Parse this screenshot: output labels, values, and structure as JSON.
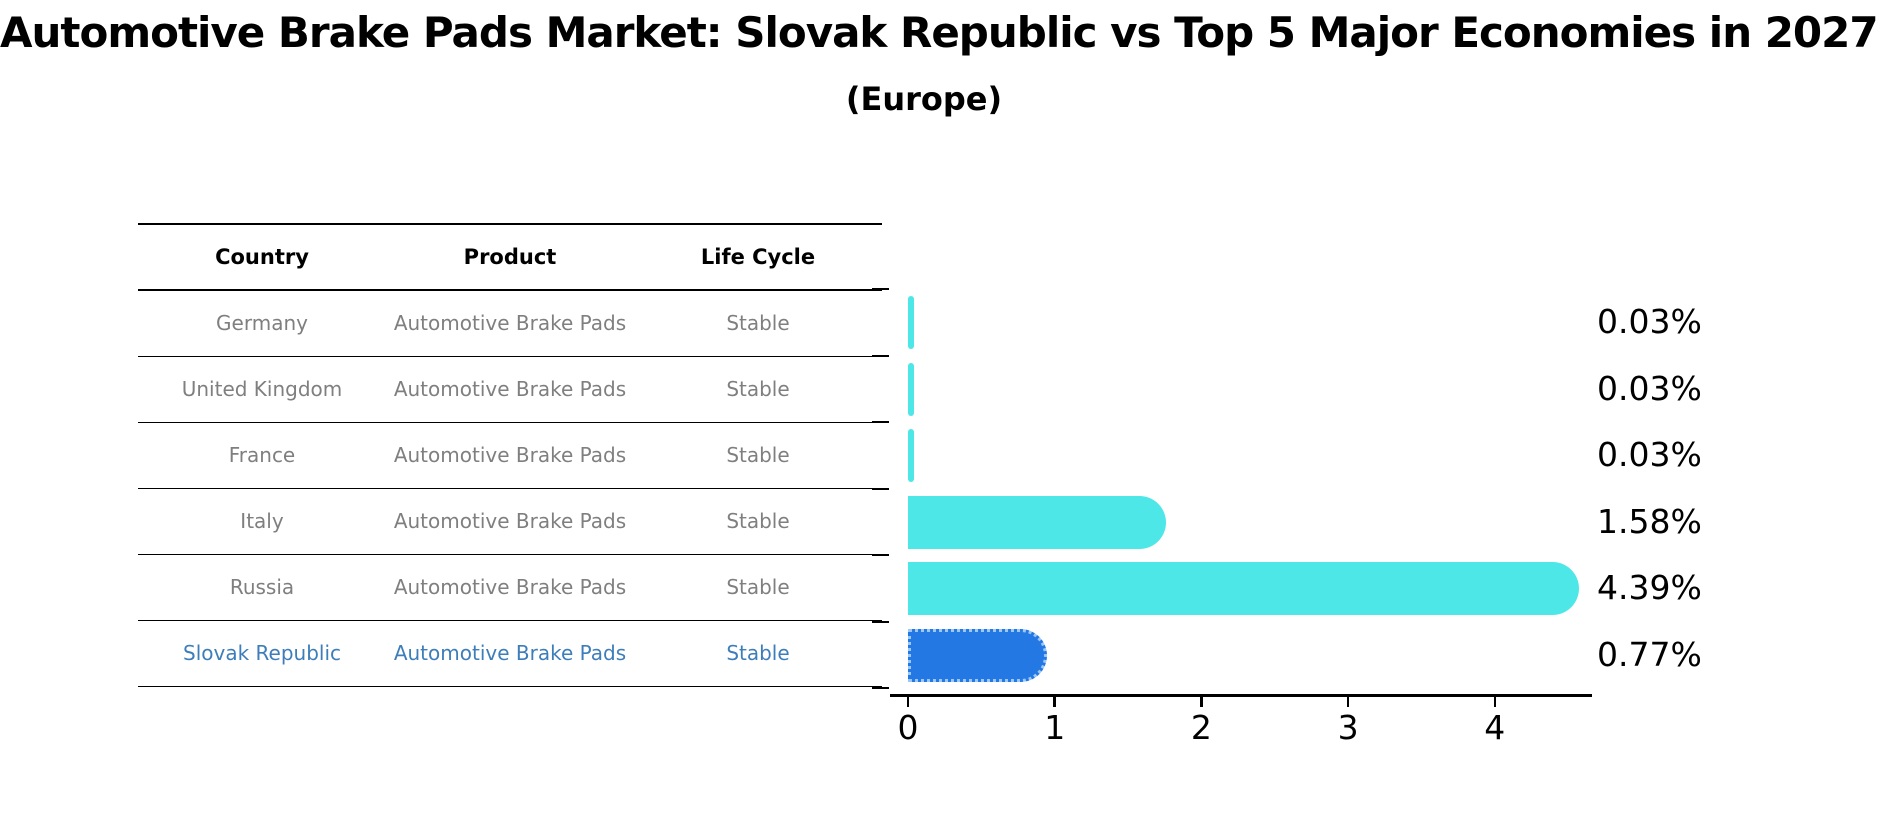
{
  "title": "Automotive Brake Pads Market: Slovak Republic vs Top 5 Major Economies in 2027",
  "subtitle": "(Europe)",
  "table": {
    "headers": [
      "Country",
      "Product",
      "Life Cycle"
    ],
    "rows": [
      {
        "country": "Germany",
        "product": "Automotive Brake Pads",
        "life_cycle": "Stable"
      },
      {
        "country": "United Kingdom",
        "product": "Automotive Brake Pads",
        "life_cycle": "Stable"
      },
      {
        "country": "France",
        "product": "Automotive Brake Pads",
        "life_cycle": "Stable"
      },
      {
        "country": "Italy",
        "product": "Automotive Brake Pads",
        "life_cycle": "Stable"
      },
      {
        "country": "Russia",
        "product": "Automotive Brake Pads",
        "life_cycle": "Stable"
      },
      {
        "country": "Slovak Republic",
        "product": "Automotive Brake Pads",
        "life_cycle": "Stable"
      }
    ],
    "highlight_row": "Slovak Republic"
  },
  "chart_data": {
    "type": "bar",
    "orientation": "horizontal",
    "categories": [
      "Germany",
      "United Kingdom",
      "France",
      "Italy",
      "Russia",
      "Slovak Republic"
    ],
    "values": [
      0.03,
      0.03,
      0.03,
      1.58,
      4.39,
      0.77
    ],
    "value_labels": [
      "0.03%",
      "0.03%",
      "0.03%",
      "1.58%",
      "4.39%",
      "0.77%"
    ],
    "x_ticks": [
      "0",
      "1",
      "2",
      "3",
      "4"
    ],
    "xlim": [
      0,
      4.63
    ],
    "grid": "off",
    "legend": "none",
    "unit": "percent",
    "highlight_index": 5,
    "bar_color": "#4de7e8",
    "highlight_bar_color": "#2378e4",
    "highlight_border_color": "#9cc8f8",
    "highlight_text_color": "#3d7eba",
    "table_text_color": "#7f7f7f"
  }
}
